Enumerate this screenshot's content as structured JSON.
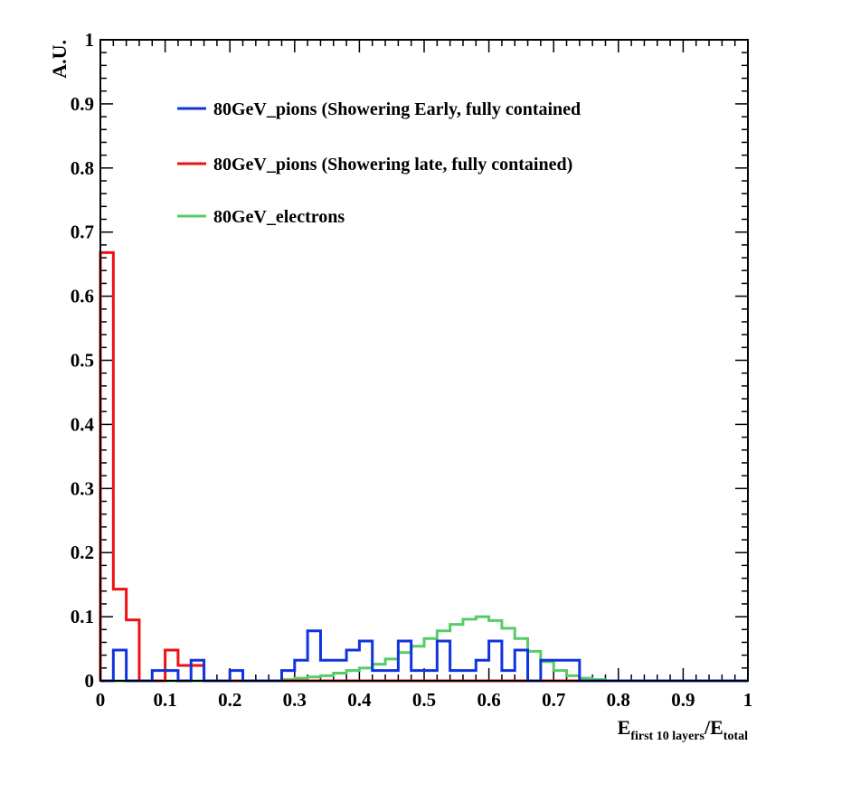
{
  "chart_data": {
    "type": "histogram",
    "xlim": [
      0,
      1
    ],
    "ylim": [
      0,
      1
    ],
    "bin_width": 0.02,
    "x_ticks": [
      "0",
      "0.1",
      "0.2",
      "0.3",
      "0.4",
      "0.5",
      "0.6",
      "0.7",
      "0.8",
      "0.9",
      "1"
    ],
    "y_ticks": [
      "0",
      "0.1",
      "0.2",
      "0.3",
      "0.4",
      "0.5",
      "0.6",
      "0.7",
      "0.8",
      "0.9",
      "1"
    ],
    "ylabel": "A.U.",
    "xlabel": {
      "num_main": "E",
      "num_sub": "first 10 layers",
      "sep": "/",
      "den_main": "E",
      "den_sub": "total"
    },
    "legend_position": "top-left",
    "series": [
      {
        "name": "80GeV_pions (Showering Early, fully contained",
        "color": "#1133dd",
        "values": [
          0,
          0.048,
          0,
          0,
          0.016,
          0.016,
          0,
          0.032,
          0,
          0,
          0.016,
          0,
          0,
          0,
          0.016,
          0.032,
          0.078,
          0.032,
          0.032,
          0.048,
          0.062,
          0.016,
          0.016,
          0.062,
          0.016,
          0.016,
          0.062,
          0.016,
          0.016,
          0.032,
          0.062,
          0.016,
          0.048,
          0,
          0.032,
          0.032,
          0.032,
          0,
          0,
          0,
          0,
          0,
          0,
          0,
          0,
          0,
          0,
          0,
          0,
          0
        ]
      },
      {
        "name": "80GeV_pions (Showering late, fully contained)",
        "color": "#ee1111",
        "values": [
          0.668,
          0.143,
          0.095,
          0,
          0,
          0.048,
          0.024,
          0.024,
          0,
          0,
          0,
          0,
          0,
          0,
          0,
          0,
          0,
          0,
          0,
          0,
          0,
          0,
          0,
          0,
          0,
          0,
          0,
          0,
          0,
          0,
          0,
          0,
          0,
          0,
          0,
          0,
          0,
          0,
          0,
          0,
          0,
          0,
          0,
          0,
          0,
          0,
          0,
          0,
          0,
          0
        ]
      },
      {
        "name": "80GeV_electrons",
        "color": "#55cc66",
        "values": [
          0,
          0,
          0,
          0,
          0,
          0,
          0,
          0,
          0,
          0,
          0,
          0,
          0,
          0,
          0.002,
          0.004,
          0.006,
          0.008,
          0.012,
          0.016,
          0.02,
          0.026,
          0.034,
          0.044,
          0.054,
          0.066,
          0.078,
          0.088,
          0.096,
          0.1,
          0.094,
          0.082,
          0.066,
          0.046,
          0.03,
          0.016,
          0.008,
          0.004,
          0.002,
          0,
          0,
          0,
          0,
          0,
          0,
          0,
          0,
          0,
          0,
          0
        ]
      }
    ]
  }
}
